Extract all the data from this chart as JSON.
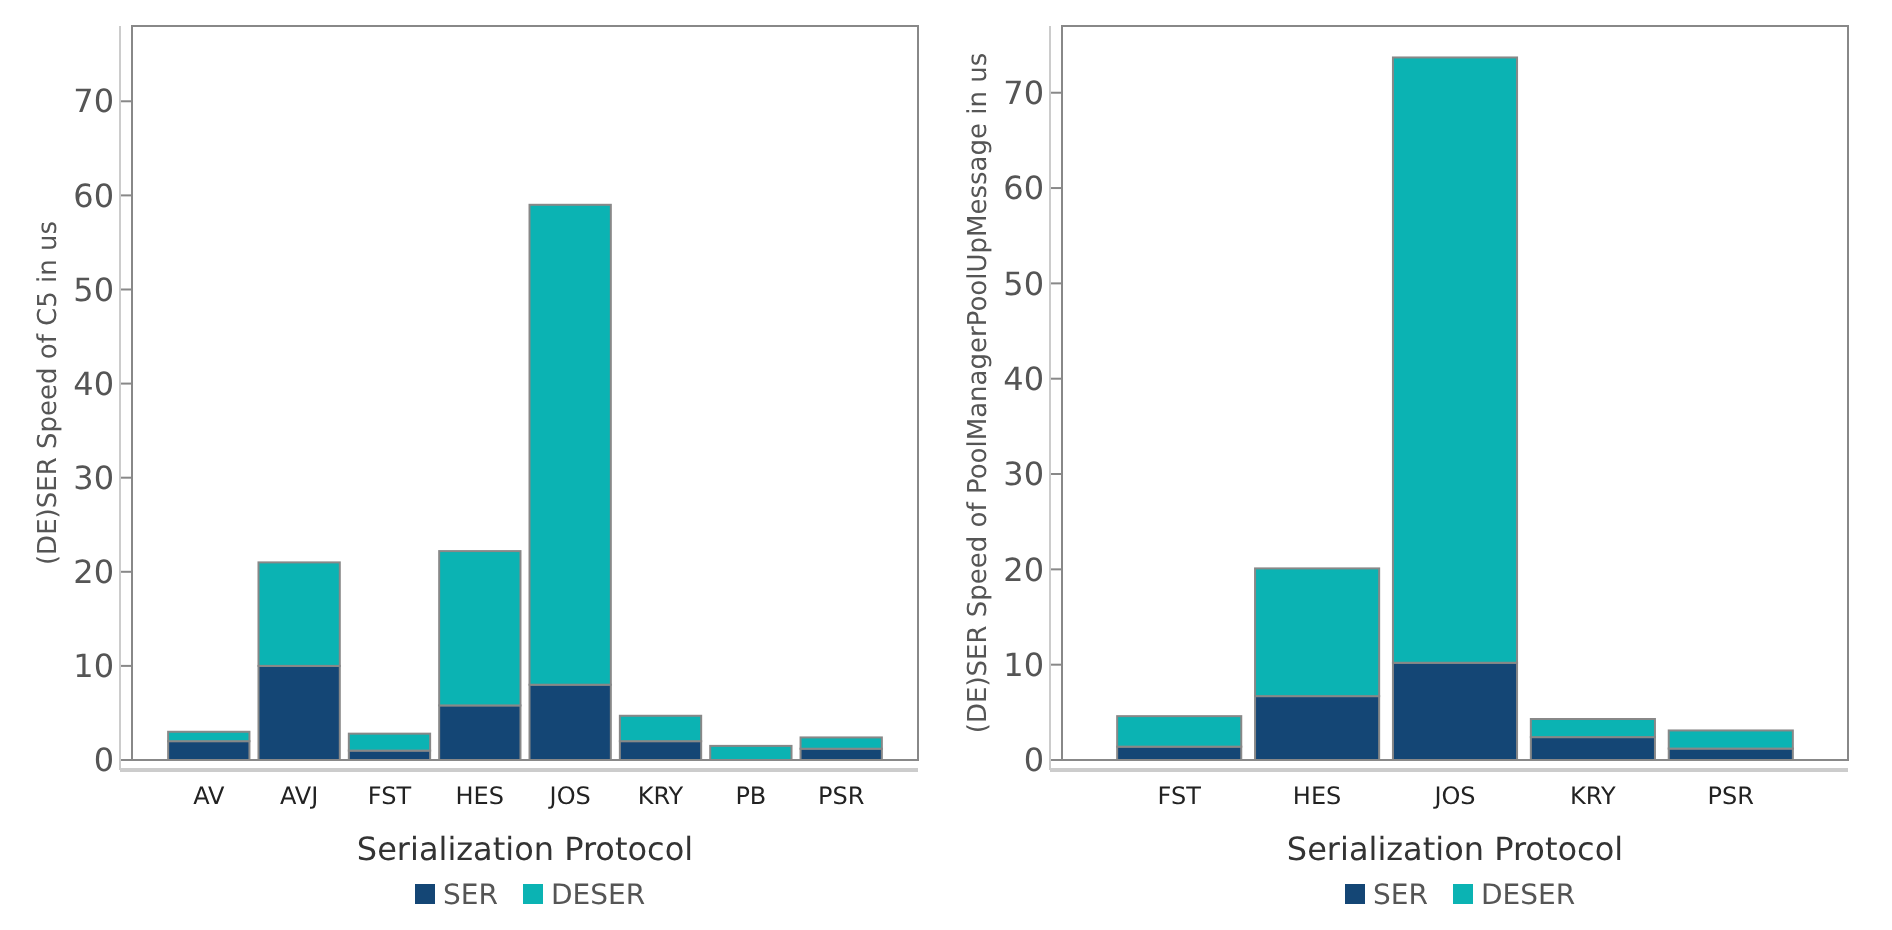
{
  "chart_data": [
    {
      "type": "bar",
      "stacked": true,
      "xlabel": "Serialization Protocol",
      "ylabel": "(DE)SER Speed of C5 in us",
      "categories": [
        "AV",
        "AVJ",
        "FST",
        "HES",
        "JOS",
        "KRY",
        "PB",
        "PSR"
      ],
      "series": [
        {
          "name": "SER",
          "color": "#144675",
          "values": [
            2,
            10,
            1,
            5.8,
            8,
            2,
            null,
            1.2
          ]
        },
        {
          "name": "DESER",
          "color": "#0bb3b3",
          "values": [
            1,
            11,
            1.8,
            16.4,
            51,
            2.7,
            1.5,
            1.2
          ]
        }
      ],
      "ylim": [
        0,
        78
      ],
      "yticks": [
        0,
        10,
        20,
        30,
        40,
        50,
        60,
        70
      ],
      "legend": "bottom"
    },
    {
      "type": "bar",
      "stacked": true,
      "xlabel": "Serialization Protocol",
      "ylabel": "(DE)SER Speed of PoolManagerPoolUpMessage in us",
      "categories": [
        "FST",
        "HES",
        "JOS",
        "KRY",
        "PSR"
      ],
      "series": [
        {
          "name": "SER",
          "color": "#144675",
          "values": [
            1.4,
            6.7,
            10.2,
            2.4,
            1.2
          ]
        },
        {
          "name": "DESER",
          "color": "#0bb3b3",
          "values": [
            3.2,
            13.4,
            63.5,
            1.9,
            1.9
          ]
        }
      ],
      "ylim": [
        0,
        77
      ],
      "yticks": [
        0,
        10,
        20,
        30,
        40,
        50,
        60,
        70
      ],
      "legend": "bottom"
    }
  ]
}
